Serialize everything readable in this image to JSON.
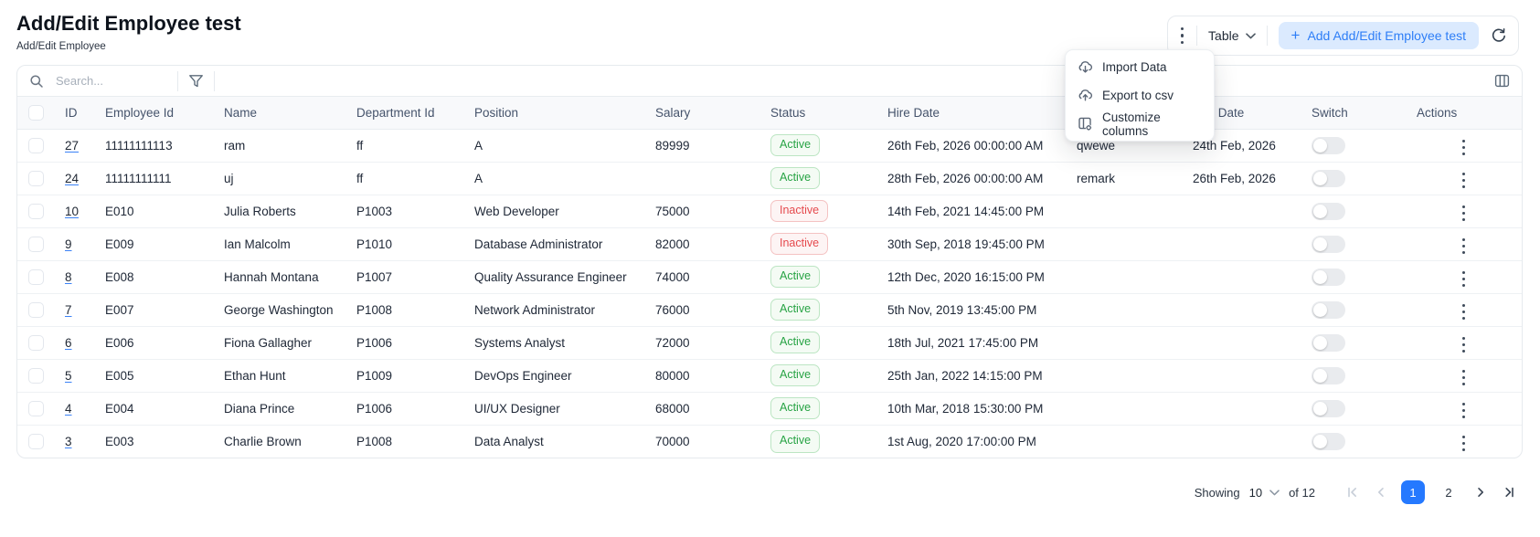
{
  "page": {
    "title": "Add/Edit Employee test",
    "subtitle": "Add/Edit Employee"
  },
  "toolbar": {
    "view_label": "Table",
    "add_button_plus": "+",
    "add_button_label": "Add Add/Edit Employee test",
    "icons": [
      "vertical-dots-icon",
      "chevron-down-icon",
      "refresh-icon"
    ]
  },
  "menu": {
    "items": [
      {
        "icon": "cloud-download-icon",
        "label": "Import Data"
      },
      {
        "icon": "cloud-upload-icon",
        "label": "Export to csv"
      },
      {
        "icon": "customize-columns-icon",
        "label": "Customize columns"
      }
    ]
  },
  "table": {
    "search_placeholder": "Search...",
    "icons": [
      "search-icon",
      "filter-funnel-icon",
      "columns-view-icon"
    ],
    "columns": [
      "ID",
      "Employee Id",
      "Name",
      "Department Id",
      "Position",
      "Salary",
      "Status",
      "Hire Date",
      "",
      "End Date",
      "Switch",
      "Actions"
    ],
    "rows": [
      {
        "id": "27",
        "employee_id": "11111111113",
        "name": "ram",
        "department_id": "ff",
        "position": "A",
        "salary": "89999",
        "status": "Active",
        "hire_date": "26th Feb, 2026 00:00:00 AM",
        "remark": "qwewe",
        "end_date": "24th Feb, 2026",
        "switch_on": false
      },
      {
        "id": "24",
        "employee_id": "11111111111",
        "name": "uj",
        "department_id": "ff",
        "position": "A",
        "salary": "",
        "status": "Active",
        "hire_date": "28th Feb, 2026 00:00:00 AM",
        "remark": "remark",
        "end_date": "26th Feb, 2026",
        "switch_on": false
      },
      {
        "id": "10",
        "employee_id": "E010",
        "name": "Julia Roberts",
        "department_id": "P1003",
        "position": "Web Developer",
        "salary": "75000",
        "status": "Inactive",
        "hire_date": "14th Feb, 2021 14:45:00 PM",
        "remark": "",
        "end_date": "",
        "switch_on": false
      },
      {
        "id": "9",
        "employee_id": "E009",
        "name": "Ian Malcolm",
        "department_id": "P1010",
        "position": "Database Administrator",
        "salary": "82000",
        "status": "Inactive",
        "hire_date": "30th Sep, 2018 19:45:00 PM",
        "remark": "",
        "end_date": "",
        "switch_on": false
      },
      {
        "id": "8",
        "employee_id": "E008",
        "name": "Hannah Montana",
        "department_id": "P1007",
        "position": "Quality Assurance Engineer",
        "salary": "74000",
        "status": "Active",
        "hire_date": "12th Dec, 2020 16:15:00 PM",
        "remark": "",
        "end_date": "",
        "switch_on": false
      },
      {
        "id": "7",
        "employee_id": "E007",
        "name": "George Washington",
        "department_id": "P1008",
        "position": "Network Administrator",
        "salary": "76000",
        "status": "Active",
        "hire_date": "5th Nov, 2019 13:45:00 PM",
        "remark": "",
        "end_date": "",
        "switch_on": false
      },
      {
        "id": "6",
        "employee_id": "E006",
        "name": "Fiona Gallagher",
        "department_id": "P1006",
        "position": "Systems Analyst",
        "salary": "72000",
        "status": "Active",
        "hire_date": "18th Jul, 2021 17:45:00 PM",
        "remark": "",
        "end_date": "",
        "switch_on": false
      },
      {
        "id": "5",
        "employee_id": "E005",
        "name": "Ethan Hunt",
        "department_id": "P1009",
        "position": "DevOps Engineer",
        "salary": "80000",
        "status": "Active",
        "hire_date": "25th Jan, 2022 14:15:00 PM",
        "remark": "",
        "end_date": "",
        "switch_on": false
      },
      {
        "id": "4",
        "employee_id": "E004",
        "name": "Diana Prince",
        "department_id": "P1006",
        "position": "UI/UX Designer",
        "salary": "68000",
        "status": "Active",
        "hire_date": "10th Mar, 2018 15:30:00 PM",
        "remark": "",
        "end_date": "",
        "switch_on": false
      },
      {
        "id": "3",
        "employee_id": "E003",
        "name": "Charlie Brown",
        "department_id": "P1008",
        "position": "Data Analyst",
        "salary": "70000",
        "status": "Active",
        "hire_date": "1st Aug, 2020 17:00:00 PM",
        "remark": "",
        "end_date": "",
        "switch_on": false
      }
    ]
  },
  "pagination": {
    "showing_label": "Showing",
    "page_size": "10",
    "of_label": "of 12",
    "pages": [
      "1",
      "2"
    ],
    "current_page": "1"
  },
  "colors": {
    "accent_blue": "#2579ff",
    "add_button_bg": "#dbeafe",
    "active_green": "#27a344",
    "inactive_red": "#e5494d"
  }
}
